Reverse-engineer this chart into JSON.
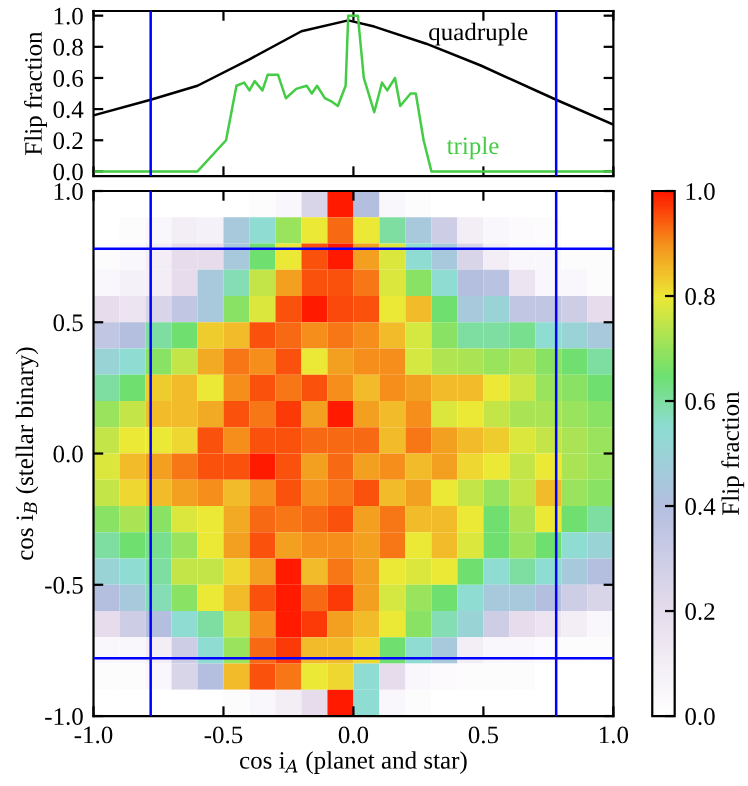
{
  "chart_data": [
    {
      "type": "line",
      "ylabel": "Flip fraction",
      "xlim": [
        -1,
        1
      ],
      "ylim": [
        -0.03,
        1.03
      ],
      "xticks": [
        {
          "value": -1,
          "label": null
        },
        {
          "value": -0.5,
          "label": null
        },
        {
          "value": 0,
          "label": null
        },
        {
          "value": 0.5,
          "label": null
        },
        {
          "value": 1,
          "label": null
        }
      ],
      "yticks": [
        {
          "value": 0,
          "label": "0.0"
        },
        {
          "value": 0.2,
          "label": "0.2"
        },
        {
          "value": 0.4,
          "label": "0.4"
        },
        {
          "value": 0.6,
          "label": "0.6"
        },
        {
          "value": 0.8,
          "label": "0.8"
        },
        {
          "value": 1,
          "label": "1.0"
        }
      ],
      "tick_labels": "y",
      "series": [
        {
          "name": "quadruple",
          "color": "#000000",
          "x": [
            -1,
            -0.78,
            -0.6,
            -0.4,
            -0.2,
            -0.02,
            0.08,
            0.28,
            0.49,
            0.78,
            1
          ],
          "values": [
            0.36,
            0.46,
            0.55,
            0.72,
            0.9,
            0.97,
            0.93,
            0.82,
            0.68,
            0.46,
            0.3
          ]
        },
        {
          "name": "triple",
          "color": "#44cc44",
          "x": [
            -1,
            -0.6,
            -0.49,
            -0.45,
            -0.42,
            -0.4,
            -0.38,
            -0.35,
            -0.33,
            -0.29,
            -0.26,
            -0.22,
            -0.18,
            -0.16,
            -0.14,
            -0.11,
            -0.085,
            -0.06,
            -0.03,
            -0.02,
            0.017,
            0.04,
            0.08,
            0.11,
            0.13,
            0.16,
            0.18,
            0.22,
            0.24,
            0.27,
            0.3,
            1
          ],
          "values": [
            0,
            0,
            0.2,
            0.55,
            0.57,
            0.52,
            0.58,
            0.52,
            0.62,
            0.62,
            0.47,
            0.53,
            0.55,
            0.5,
            0.55,
            0.47,
            0.45,
            0.42,
            0.55,
            1.0,
            1.0,
            0.6,
            0.38,
            0.57,
            0.52,
            0.6,
            0.42,
            0.5,
            0.5,
            0.2,
            0,
            0
          ]
        }
      ],
      "ref_lines": [
        {
          "axis": "x",
          "value": -0.78,
          "color": "#0000ff"
        },
        {
          "axis": "x",
          "value": 0.78,
          "color": "#0000ff"
        }
      ]
    },
    {
      "type": "heatmap",
      "xlabel": "cos i$_{A}$ (planet and star)",
      "ylabel": "cos i$_{B}$ (stellar binary)",
      "clabel": "Flip fraction",
      "xlim": [
        -1,
        1
      ],
      "ylim": [
        -1,
        1
      ],
      "xticks": [
        {
          "value": -1,
          "label": "-1.0"
        },
        {
          "value": -0.5,
          "label": "-0.5"
        },
        {
          "value": 0,
          "label": "0.0"
        },
        {
          "value": 0.5,
          "label": "0.5"
        },
        {
          "value": 1,
          "label": "1.0"
        }
      ],
      "yticks": [
        {
          "value": -1,
          "label": "-1.0"
        },
        {
          "value": -0.5,
          "label": "-0.5"
        },
        {
          "value": 0,
          "label": "0.0"
        },
        {
          "value": 0.5,
          "label": "0.5"
        },
        {
          "value": 1,
          "label": "1.0"
        }
      ],
      "clim": [
        0,
        1
      ],
      "cticks": [
        {
          "value": 0,
          "label": "0.0"
        },
        {
          "value": 0.2,
          "label": "0.2"
        },
        {
          "value": 0.4,
          "label": "0.4"
        },
        {
          "value": 0.6,
          "label": "0.6"
        },
        {
          "value": 0.8,
          "label": "0.8"
        },
        {
          "value": 1,
          "label": "1.0"
        }
      ],
      "x": [
        -0.95,
        -0.85,
        -0.75,
        -0.65,
        -0.55,
        -0.45,
        -0.35,
        -0.25,
        -0.15,
        -0.05,
        0.05,
        0.15,
        0.25,
        0.35,
        0.45,
        0.55,
        0.65,
        0.75,
        0.85,
        0.95
      ],
      "y": [
        0.95,
        0.85,
        0.75,
        0.65,
        0.55,
        0.45,
        0.35,
        0.25,
        0.15,
        0.05,
        -0.05,
        -0.15,
        -0.25,
        -0.35,
        -0.45,
        -0.55,
        -0.65,
        -0.75,
        -0.85,
        -0.95
      ],
      "cells": [
        [
          0,
          0,
          0,
          0,
          0,
          0,
          0.02,
          0.05,
          0.25,
          1.0,
          0.4,
          0.05,
          0.02,
          0,
          0,
          0,
          0,
          0,
          0,
          0
        ],
        [
          0,
          0.02,
          0.05,
          0.1,
          0.08,
          0.45,
          0.55,
          0.7,
          0.8,
          0.93,
          0.8,
          0.6,
          0.45,
          0.3,
          0.1,
          0.05,
          0.03,
          0.02,
          0,
          0
        ],
        [
          0.02,
          0.05,
          0.1,
          0.2,
          0.2,
          0.45,
          0.65,
          0.8,
          0.95,
          1.0,
          0.88,
          0.78,
          0.55,
          0.45,
          0.25,
          0.1,
          0.05,
          0.05,
          0.02,
          0.02
        ],
        [
          0.05,
          0.08,
          0.1,
          0.2,
          0.45,
          0.58,
          0.75,
          0.88,
          0.95,
          0.95,
          0.92,
          0.78,
          0.68,
          0.55,
          0.4,
          0.38,
          0.15,
          0.05,
          0.05,
          0.02
        ],
        [
          0.2,
          0.15,
          0.25,
          0.35,
          0.45,
          0.68,
          0.78,
          0.95,
          1.0,
          0.96,
          0.95,
          0.8,
          0.85,
          0.65,
          0.45,
          0.5,
          0.35,
          0.35,
          0.3,
          0.2
        ],
        [
          0.35,
          0.4,
          0.6,
          0.65,
          0.83,
          0.85,
          0.95,
          0.93,
          0.9,
          0.92,
          0.9,
          0.85,
          0.77,
          0.68,
          0.6,
          0.6,
          0.62,
          0.55,
          0.5,
          0.45
        ],
        [
          0.5,
          0.55,
          0.68,
          0.75,
          0.87,
          0.92,
          0.9,
          0.95,
          0.8,
          0.88,
          0.9,
          0.9,
          0.77,
          0.73,
          0.72,
          0.7,
          0.72,
          0.68,
          0.65,
          0.6
        ],
        [
          0.6,
          0.65,
          0.83,
          0.85,
          0.8,
          0.9,
          0.95,
          0.92,
          0.95,
          0.9,
          0.85,
          0.9,
          0.88,
          0.85,
          0.85,
          0.8,
          0.76,
          0.7,
          0.68,
          0.65
        ],
        [
          0.7,
          0.75,
          0.85,
          0.85,
          0.87,
          0.95,
          0.92,
          0.97,
          0.88,
          1.0,
          0.88,
          0.85,
          0.9,
          0.78,
          0.8,
          0.75,
          0.72,
          0.72,
          0.7,
          0.68
        ],
        [
          0.75,
          0.8,
          0.8,
          0.82,
          0.95,
          0.9,
          0.95,
          0.95,
          0.93,
          0.93,
          0.93,
          0.85,
          0.92,
          0.88,
          0.85,
          0.83,
          0.78,
          0.75,
          0.72,
          0.7
        ],
        [
          0.78,
          0.85,
          0.88,
          0.92,
          0.95,
          0.95,
          1.0,
          0.95,
          0.88,
          0.93,
          0.88,
          0.9,
          0.85,
          0.88,
          0.82,
          0.8,
          0.75,
          0.8,
          0.72,
          0.7
        ],
        [
          0.75,
          0.82,
          0.85,
          0.88,
          0.9,
          0.85,
          0.9,
          0.95,
          0.9,
          0.92,
          0.95,
          0.85,
          0.88,
          0.8,
          0.75,
          0.7,
          0.75,
          0.85,
          0.7,
          0.68
        ],
        [
          0.68,
          0.72,
          0.68,
          0.78,
          0.8,
          0.87,
          0.93,
          0.92,
          0.93,
          0.95,
          0.88,
          0.92,
          0.85,
          0.85,
          0.8,
          0.65,
          0.72,
          0.8,
          0.65,
          0.6
        ],
        [
          0.6,
          0.65,
          0.62,
          0.7,
          0.8,
          0.88,
          0.95,
          0.88,
          0.9,
          0.9,
          0.88,
          0.92,
          0.8,
          0.85,
          0.78,
          0.65,
          0.7,
          0.65,
          0.55,
          0.5
        ],
        [
          0.5,
          0.55,
          0.6,
          0.75,
          0.75,
          0.82,
          0.88,
          1.0,
          0.85,
          0.92,
          0.88,
          0.8,
          0.78,
          0.8,
          0.65,
          0.55,
          0.6,
          0.55,
          0.45,
          0.4
        ],
        [
          0.4,
          0.45,
          0.58,
          0.68,
          0.8,
          0.85,
          0.95,
          1.0,
          0.93,
          0.97,
          0.88,
          0.77,
          0.7,
          0.65,
          0.55,
          0.45,
          0.45,
          0.4,
          0.3,
          0.25
        ],
        [
          0.2,
          0.3,
          0.4,
          0.55,
          0.6,
          0.75,
          0.9,
          1.0,
          0.97,
          0.88,
          0.85,
          0.8,
          0.68,
          0.58,
          0.5,
          0.3,
          0.2,
          0.15,
          0.1,
          0.05
        ],
        [
          0.05,
          0.05,
          0.1,
          0.3,
          0.55,
          0.7,
          0.93,
          0.97,
          0.85,
          0.85,
          0.82,
          0.65,
          0.55,
          0.45,
          0.1,
          0.05,
          0.05,
          0.03,
          0.02,
          0.02
        ],
        [
          0.02,
          0.02,
          0.05,
          0.25,
          0.4,
          0.85,
          0.95,
          0.92,
          0.8,
          0.82,
          0.55,
          0.2,
          0.05,
          0.03,
          0.02,
          0.02,
          0.02,
          0,
          0,
          0
        ],
        [
          0,
          0,
          0,
          0,
          0,
          0.02,
          0.05,
          0.1,
          0.2,
          1.0,
          0.55,
          0.05,
          0.02,
          0,
          0,
          0,
          0,
          0,
          0,
          0
        ]
      ],
      "ref_lines": [
        {
          "axis": "x",
          "value": -0.78,
          "color": "#0000ff"
        },
        {
          "axis": "x",
          "value": 0.78,
          "color": "#0000ff"
        },
        {
          "axis": "y",
          "value": 0.78,
          "color": "#0000ff"
        },
        {
          "axis": "y",
          "value": -0.78,
          "color": "#0000ff"
        }
      ]
    }
  ]
}
